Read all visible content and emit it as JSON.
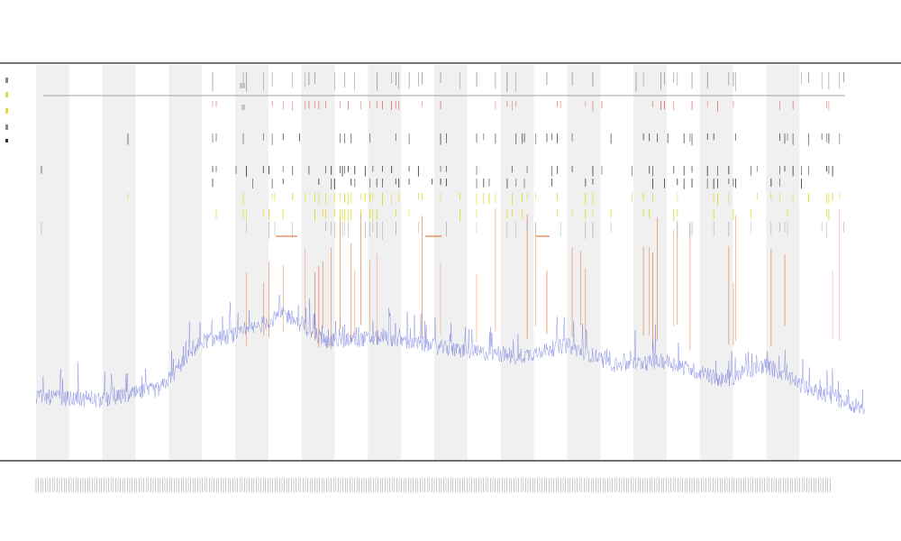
{
  "chart_data": {
    "type": "line",
    "title": "",
    "subtitle_1": "",
    "subtitle_2": "",
    "xlabel": "",
    "ylabel": "",
    "legend_position": "left",
    "grid": false,
    "band_count": 24,
    "band_colors": {
      "shade": "#f0f0f0",
      "plain": "#ffffff"
    },
    "ylim": [
      0,
      1
    ],
    "series": [
      {
        "name": "",
        "color": "#4a55d8",
        "kind": "line",
        "baseline_points": [
          [
            0,
            0.16
          ],
          [
            0.08,
            0.15
          ],
          [
            0.15,
            0.18
          ],
          [
            0.2,
            0.3
          ],
          [
            0.25,
            0.32
          ],
          [
            0.3,
            0.37
          ],
          [
            0.35,
            0.3
          ],
          [
            0.42,
            0.31
          ],
          [
            0.5,
            0.28
          ],
          [
            0.58,
            0.26
          ],
          [
            0.64,
            0.29
          ],
          [
            0.7,
            0.24
          ],
          [
            0.76,
            0.25
          ],
          [
            0.83,
            0.2
          ],
          [
            0.88,
            0.24
          ],
          [
            0.93,
            0.18
          ],
          [
            1,
            0.13
          ]
        ]
      },
      {
        "name": "",
        "color": "#e0601a",
        "kind": "spikes"
      },
      {
        "name": "",
        "color": "#cccc00",
        "kind": "ticks"
      },
      {
        "name": "",
        "color": "#e03030",
        "kind": "ticks"
      },
      {
        "name": "",
        "color": "#222222",
        "kind": "ticks"
      }
    ],
    "note": ""
  },
  "colors": {
    "axis": "#444444",
    "blue_line": "#4a55d8",
    "orange_spike": "#e0601a",
    "yellow_tick": "#d8d800",
    "red_tick": "#e03030",
    "black_tick": "#222222",
    "rule": "#888888"
  }
}
